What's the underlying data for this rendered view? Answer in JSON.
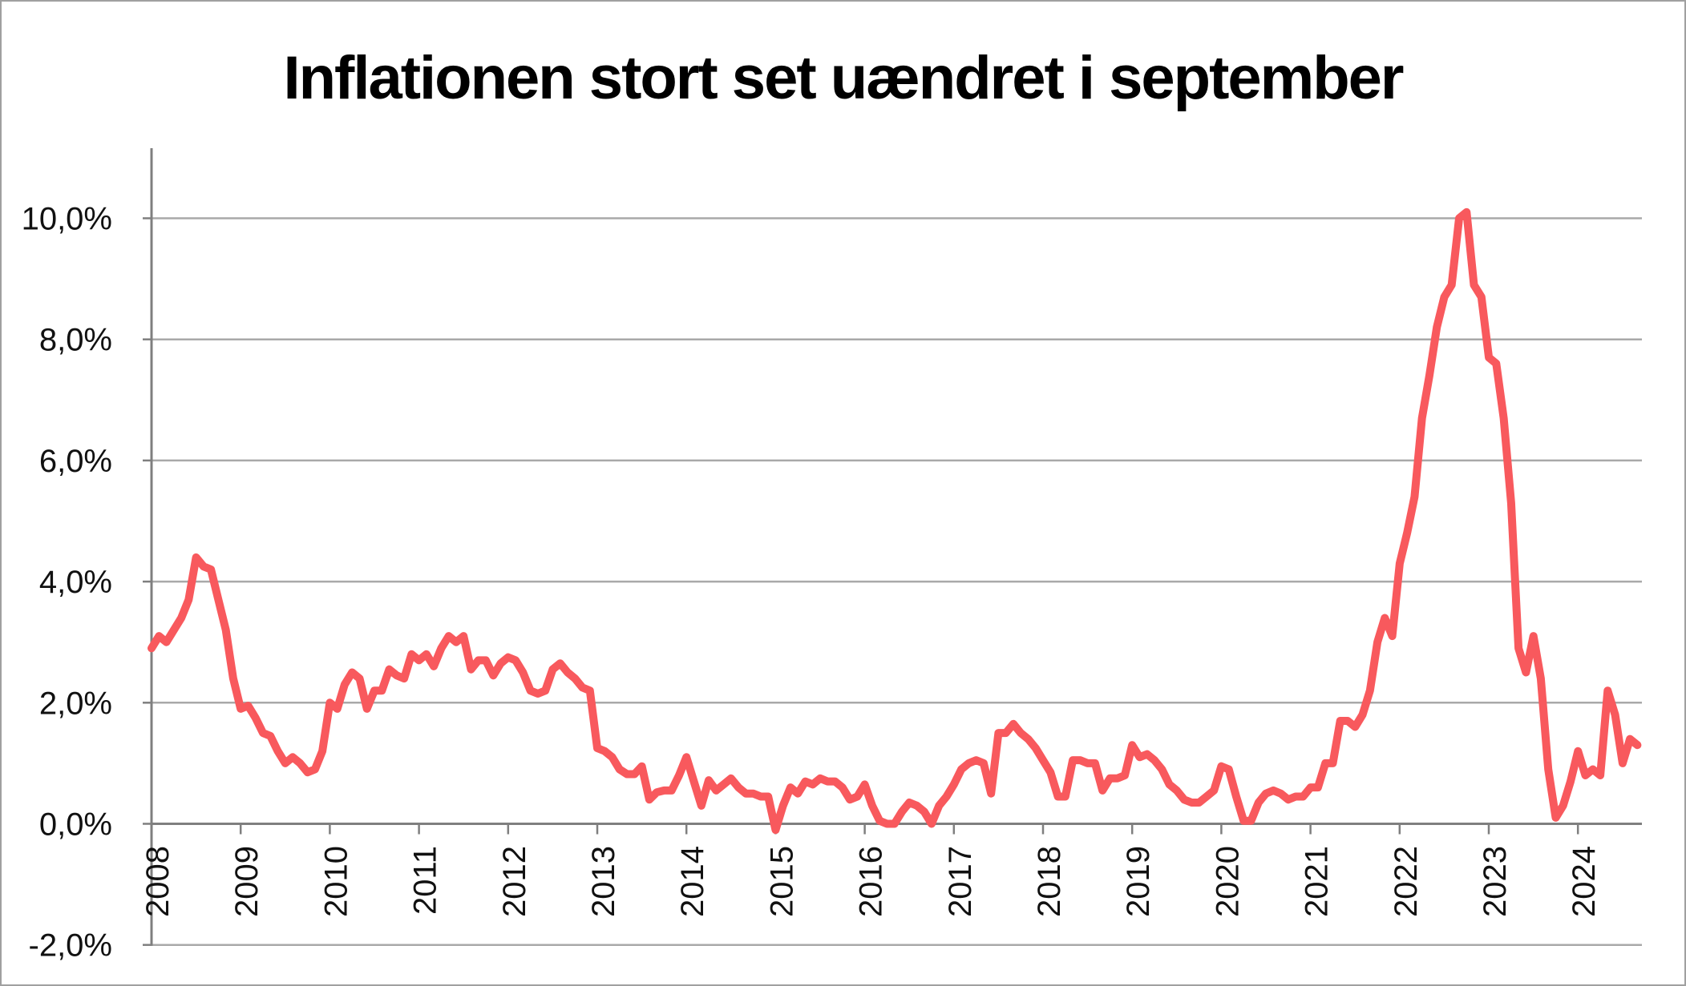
{
  "title": "Inflationen stort set uændret i september",
  "chart_data": {
    "type": "line",
    "title": "Inflationen stort set uændret i september",
    "x_unit": "month",
    "x_start": "2008-01",
    "x_end": "2024-09",
    "x_tick_labels": [
      "2008",
      "2009",
      "2010",
      "2011",
      "2012",
      "2013",
      "2014",
      "2015",
      "2016",
      "2017",
      "2018",
      "2019",
      "2020",
      "2021",
      "2022",
      "2023",
      "2024"
    ],
    "y_tick_labels": [
      "-2,0%",
      "0,0%",
      "2,0%",
      "4,0%",
      "6,0%",
      "8,0%",
      "10,0%"
    ],
    "y_tick_values": [
      -2,
      0,
      2,
      4,
      6,
      8,
      10
    ],
    "ylim": [
      -2,
      11.2
    ],
    "grid": true,
    "legend_position": "none",
    "values": [
      2.9,
      3.1,
      3.0,
      3.2,
      3.4,
      3.7,
      4.4,
      4.25,
      4.2,
      3.7,
      3.2,
      2.4,
      1.9,
      1.95,
      1.75,
      1.5,
      1.45,
      1.2,
      1.0,
      1.1,
      1.0,
      0.85,
      0.9,
      1.2,
      2.0,
      1.9,
      2.3,
      2.5,
      2.4,
      1.9,
      2.2,
      2.2,
      2.55,
      2.45,
      2.4,
      2.8,
      2.7,
      2.8,
      2.6,
      2.9,
      3.1,
      3.0,
      3.1,
      2.55,
      2.7,
      2.7,
      2.45,
      2.65,
      2.75,
      2.7,
      2.5,
      2.2,
      2.15,
      2.2,
      2.55,
      2.65,
      2.5,
      2.4,
      2.25,
      2.2,
      1.25,
      1.2,
      1.1,
      0.9,
      0.82,
      0.82,
      0.95,
      0.4,
      0.52,
      0.55,
      0.55,
      0.8,
      1.1,
      0.7,
      0.3,
      0.72,
      0.55,
      0.65,
      0.75,
      0.6,
      0.5,
      0.5,
      0.45,
      0.45,
      -0.1,
      0.3,
      0.6,
      0.5,
      0.7,
      0.65,
      0.75,
      0.7,
      0.7,
      0.6,
      0.4,
      0.45,
      0.65,
      0.3,
      0.05,
      0.0,
      0.0,
      0.2,
      0.35,
      0.3,
      0.2,
      0.0,
      0.3,
      0.45,
      0.65,
      0.9,
      1.0,
      1.05,
      1.0,
      0.5,
      1.5,
      1.5,
      1.65,
      1.5,
      1.4,
      1.25,
      1.05,
      0.85,
      0.45,
      0.45,
      1.05,
      1.05,
      1.0,
      1.0,
      0.55,
      0.75,
      0.75,
      0.8,
      1.3,
      1.1,
      1.15,
      1.05,
      0.9,
      0.65,
      0.55,
      0.4,
      0.35,
      0.35,
      0.45,
      0.55,
      0.95,
      0.9,
      0.45,
      0.05,
      0.05,
      0.35,
      0.5,
      0.55,
      0.5,
      0.4,
      0.45,
      0.45,
      0.6,
      0.6,
      1.0,
      1.0,
      1.7,
      1.7,
      1.6,
      1.8,
      2.2,
      3.0,
      3.4,
      3.1,
      4.3,
      4.8,
      5.4,
      6.7,
      7.4,
      8.2,
      8.7,
      8.9,
      10.0,
      10.1,
      8.9,
      8.7,
      7.7,
      7.6,
      6.7,
      5.3,
      2.9,
      2.5,
      3.1,
      2.4,
      0.9,
      0.1,
      0.3,
      0.7,
      1.2,
      0.8,
      0.9,
      0.8,
      2.2,
      1.8,
      1.0,
      1.4,
      1.3
    ],
    "colors": {
      "line": "#F8595D",
      "grid": "#A9A9A9",
      "axis": "#7F7F7F",
      "text": "#111111"
    }
  }
}
